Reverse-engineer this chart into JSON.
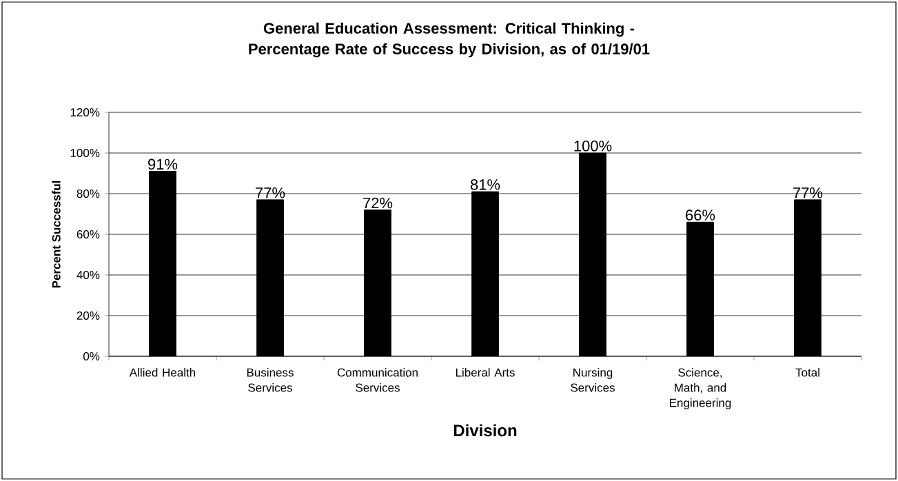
{
  "chart_data": {
    "type": "bar",
    "title": "General Education Assessment: Critical Thinking - Percentage Rate of Success by Division, as of 01/19/01",
    "xlabel": "Division",
    "ylabel": "Percent Successful",
    "categories": [
      "Allied Health",
      "Business Services",
      "Communication Services",
      "Liberal Arts",
      "Nursing Services",
      "Science, Math, and Engineering",
      "Total"
    ],
    "values": [
      91,
      77,
      72,
      81,
      100,
      66,
      77
    ],
    "value_labels": [
      "91%",
      "77%",
      "72%",
      "81%",
      "100%",
      "66%",
      "77%"
    ],
    "color": "#000000",
    "ylim": [
      0,
      120
    ],
    "yticks": [
      {
        "value": 0,
        "label": "0%"
      },
      {
        "value": 20,
        "label": "20%"
      },
      {
        "value": 40,
        "label": "40%"
      },
      {
        "value": 60,
        "label": "60%"
      },
      {
        "value": 80,
        "label": "80%"
      },
      {
        "value": 100,
        "label": "100%"
      },
      {
        "value": 120,
        "label": "120%"
      }
    ],
    "grid": "y"
  }
}
